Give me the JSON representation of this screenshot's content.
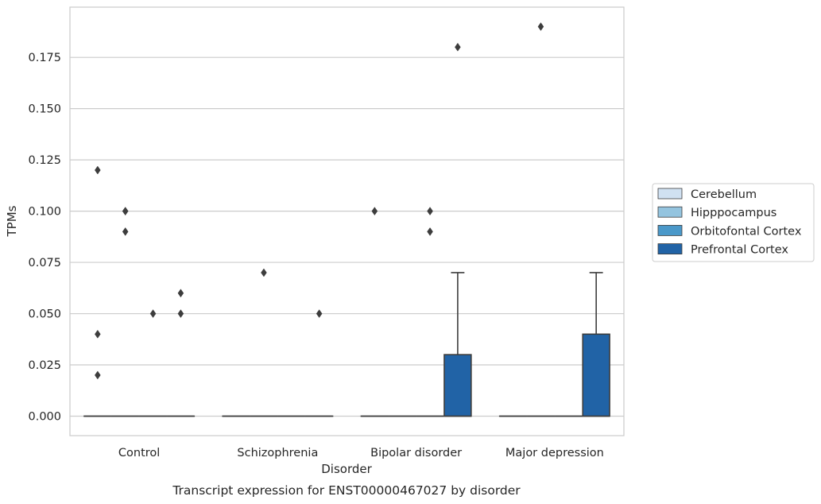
{
  "chart_data": {
    "type": "box",
    "caption": "Transcript expression for ENST00000467027 by disorder",
    "xlabel": "Disorder",
    "ylabel": "TPMs",
    "ylim": [
      -0.0095,
      0.1995
    ],
    "grid": true,
    "legend_position": "right",
    "yticks": [
      0.0,
      0.025,
      0.05,
      0.075,
      0.1,
      0.125,
      0.15,
      0.175
    ],
    "ytick_labels": [
      "0.000",
      "0.025",
      "0.050",
      "0.075",
      "0.100",
      "0.125",
      "0.150",
      "0.175"
    ],
    "categories": [
      "Control",
      "Schizophrenia",
      "Bipolar disorder",
      "Major depression"
    ],
    "series": [
      {
        "name": "Cerebellum",
        "color": "#d0e1f2",
        "boxes": [
          {
            "q1": 0,
            "median": 0,
            "q3": 0,
            "whislo": 0,
            "whishi": 0,
            "fliers": [
              0.12,
              0.04,
              0.02
            ]
          },
          {
            "q1": 0,
            "median": 0,
            "q3": 0,
            "whislo": 0,
            "whishi": 0,
            "fliers": []
          },
          {
            "q1": 0,
            "median": 0,
            "q3": 0,
            "whislo": 0,
            "whishi": 0,
            "fliers": [
              0.1
            ]
          },
          {
            "q1": 0,
            "median": 0,
            "q3": 0,
            "whislo": 0,
            "whishi": 0,
            "fliers": []
          }
        ]
      },
      {
        "name": "Hipppocampus",
        "color": "#94c4df",
        "boxes": [
          {
            "q1": 0,
            "median": 0,
            "q3": 0,
            "whislo": 0,
            "whishi": 0,
            "fliers": [
              0.1,
              0.1,
              0.09
            ]
          },
          {
            "q1": 0,
            "median": 0,
            "q3": 0,
            "whislo": 0,
            "whishi": 0,
            "fliers": [
              0.07
            ]
          },
          {
            "q1": 0,
            "median": 0,
            "q3": 0,
            "whislo": 0,
            "whishi": 0,
            "fliers": []
          },
          {
            "q1": 0,
            "median": 0,
            "q3": 0,
            "whislo": 0,
            "whishi": 0,
            "fliers": [
              0.19
            ]
          }
        ]
      },
      {
        "name": "Orbitofontal Cortex",
        "color": "#4a98c9",
        "boxes": [
          {
            "q1": 0,
            "median": 0,
            "q3": 0,
            "whislo": 0,
            "whishi": 0,
            "fliers": [
              0.05
            ]
          },
          {
            "q1": 0,
            "median": 0,
            "q3": 0,
            "whislo": 0,
            "whishi": 0,
            "fliers": []
          },
          {
            "q1": 0,
            "median": 0,
            "q3": 0,
            "whislo": 0,
            "whishi": 0,
            "fliers": [
              0.1,
              0.09
            ]
          },
          {
            "q1": 0,
            "median": 0,
            "q3": 0,
            "whislo": 0,
            "whishi": 0,
            "fliers": []
          }
        ]
      },
      {
        "name": "Prefrontal Cortex",
        "color": "#2163a6",
        "boxes": [
          {
            "q1": 0,
            "median": 0,
            "q3": 0,
            "whislo": 0,
            "whishi": 0,
            "fliers": [
              0.06,
              0.05
            ]
          },
          {
            "q1": 0,
            "median": 0,
            "q3": 0,
            "whislo": 0,
            "whishi": 0,
            "fliers": [
              0.05
            ]
          },
          {
            "q1": 0,
            "median": 0,
            "q3": 0.03,
            "whislo": 0,
            "whishi": 0.07,
            "fliers": [
              0.18
            ]
          },
          {
            "q1": 0,
            "median": 0,
            "q3": 0.04,
            "whislo": 0,
            "whishi": 0.07,
            "fliers": []
          }
        ]
      }
    ]
  }
}
